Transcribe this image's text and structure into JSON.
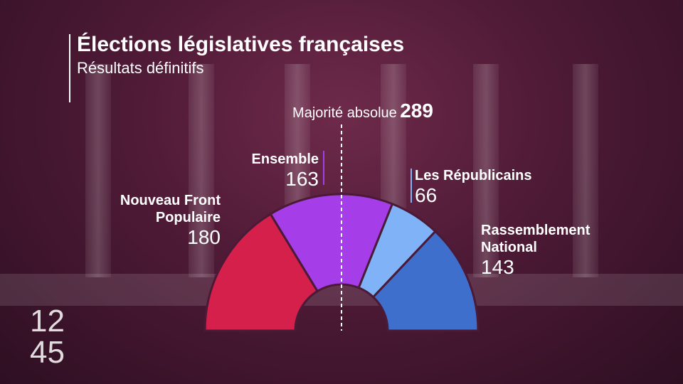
{
  "chart_data": {
    "type": "semicircle",
    "title": "Élections législatives françaises",
    "subtitle": "Résultats définitifs",
    "majority_label": "Majorité absolue",
    "majority_value": 289,
    "categories": [
      "Nouveau Front Populaire",
      "Ensemble",
      "Les Républicains",
      "Rassemblement National"
    ],
    "values": [
      180,
      163,
      66,
      143
    ],
    "colors": [
      "#d5204c",
      "#a53ee9",
      "#7fb2f6",
      "#3f6fcd"
    ]
  },
  "clock": [
    "12",
    "45"
  ]
}
